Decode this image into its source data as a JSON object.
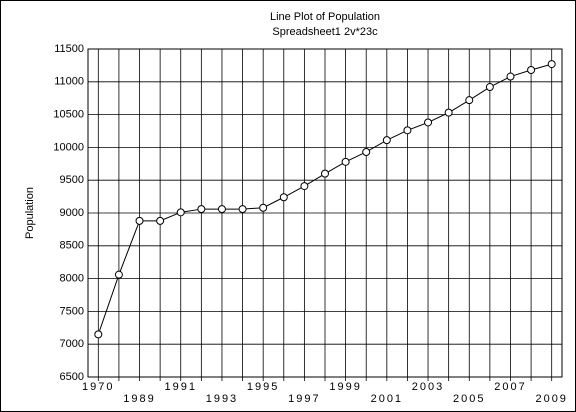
{
  "chart_data": {
    "type": "line",
    "title": "Line Plot of Population",
    "subtitle": "Spreadsheet1 2v*23c",
    "y_label": "Population",
    "categories": [
      "1970",
      null,
      "1989",
      null,
      "1991",
      null,
      "1993",
      null,
      "1995",
      null,
      "1997",
      null,
      "1999",
      null,
      "2001",
      null,
      "2003",
      null,
      "2005",
      null,
      "2007",
      null,
      "2009"
    ],
    "series": [
      {
        "name": "Population",
        "color": "#000000",
        "values": [
          7150,
          8060,
          8880,
          8880,
          9010,
          9060,
          9060,
          9060,
          9080,
          9240,
          9410,
          9600,
          9780,
          9930,
          10110,
          10260,
          10380,
          10530,
          10720,
          10920,
          11080,
          11180,
          11270
        ]
      }
    ],
    "ylim": [
      6500,
      11500
    ],
    "yticks": [
      6500,
      7000,
      7500,
      8000,
      8500,
      9000,
      9500,
      10000,
      10500,
      11000,
      11500
    ],
    "grid": true
  }
}
